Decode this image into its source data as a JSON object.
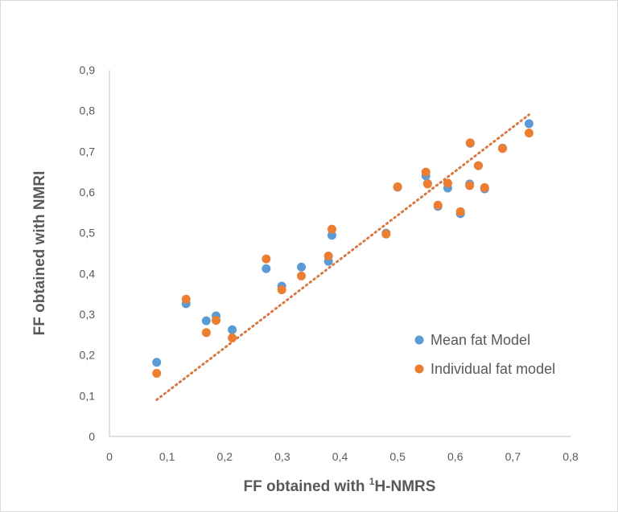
{
  "chart_data": {
    "type": "scatter",
    "title": "",
    "xlabel": "FF obtained with ",
    "xlabel_sup": "1",
    "xlabel_suffix": "H-NMRS",
    "ylabel": "FF obtained with NMRI",
    "xlim": [
      0,
      0.8
    ],
    "ylim": [
      0,
      0.9
    ],
    "x_ticks": [
      0,
      0.1,
      0.2,
      0.3,
      0.4,
      0.5,
      0.6,
      0.7,
      0.8
    ],
    "x_tick_labels": [
      "0",
      "0,1",
      "0,2",
      "0,3",
      "0,4",
      "0,5",
      "0,6",
      "0,7",
      "0,8"
    ],
    "y_ticks": [
      0,
      0.1,
      0.2,
      0.3,
      0.4,
      0.5,
      0.6,
      0.7,
      0.8,
      0.9
    ],
    "y_tick_labels": [
      "0",
      "0,1",
      "0,2",
      "0,3",
      "0,4",
      "0,5",
      "0,6",
      "0,7",
      "0,8",
      "0,9"
    ],
    "grid": false,
    "legend_position": "right",
    "series": [
      {
        "name": "Mean fat Model",
        "color": "#5b9bd5",
        "points": [
          [
            0.082,
            0.182
          ],
          [
            0.133,
            0.326
          ],
          [
            0.168,
            0.284
          ],
          [
            0.185,
            0.296
          ],
          [
            0.213,
            0.262
          ],
          [
            0.272,
            0.412
          ],
          [
            0.299,
            0.369
          ],
          [
            0.333,
            0.416
          ],
          [
            0.38,
            0.43
          ],
          [
            0.386,
            0.494
          ],
          [
            0.48,
            0.499
          ],
          [
            0.5,
            0.612
          ],
          [
            0.549,
            0.64
          ],
          [
            0.552,
            0.621
          ],
          [
            0.57,
            0.565
          ],
          [
            0.587,
            0.61
          ],
          [
            0.609,
            0.547
          ],
          [
            0.625,
            0.62
          ],
          [
            0.626,
            0.72
          ],
          [
            0.64,
            0.665
          ],
          [
            0.651,
            0.608
          ],
          [
            0.682,
            0.708
          ],
          [
            0.728,
            0.768
          ]
        ]
      },
      {
        "name": "Individual fat model",
        "color": "#ed7d31",
        "points": [
          [
            0.082,
            0.155
          ],
          [
            0.133,
            0.337
          ],
          [
            0.168,
            0.255
          ],
          [
            0.185,
            0.285
          ],
          [
            0.213,
            0.242
          ],
          [
            0.272,
            0.436
          ],
          [
            0.299,
            0.36
          ],
          [
            0.333,
            0.394
          ],
          [
            0.38,
            0.443
          ],
          [
            0.386,
            0.509
          ],
          [
            0.48,
            0.497
          ],
          [
            0.5,
            0.613
          ],
          [
            0.549,
            0.649
          ],
          [
            0.552,
            0.62
          ],
          [
            0.57,
            0.568
          ],
          [
            0.587,
            0.622
          ],
          [
            0.609,
            0.552
          ],
          [
            0.625,
            0.616
          ],
          [
            0.626,
            0.721
          ],
          [
            0.64,
            0.665
          ],
          [
            0.651,
            0.611
          ],
          [
            0.682,
            0.707
          ],
          [
            0.728,
            0.745
          ]
        ]
      }
    ],
    "trendline": {
      "series": "Individual fat model",
      "style": "dotted",
      "color": "#d67a42",
      "x_range": [
        0.082,
        0.728
      ],
      "y_range": [
        0.09,
        0.79
      ]
    }
  }
}
